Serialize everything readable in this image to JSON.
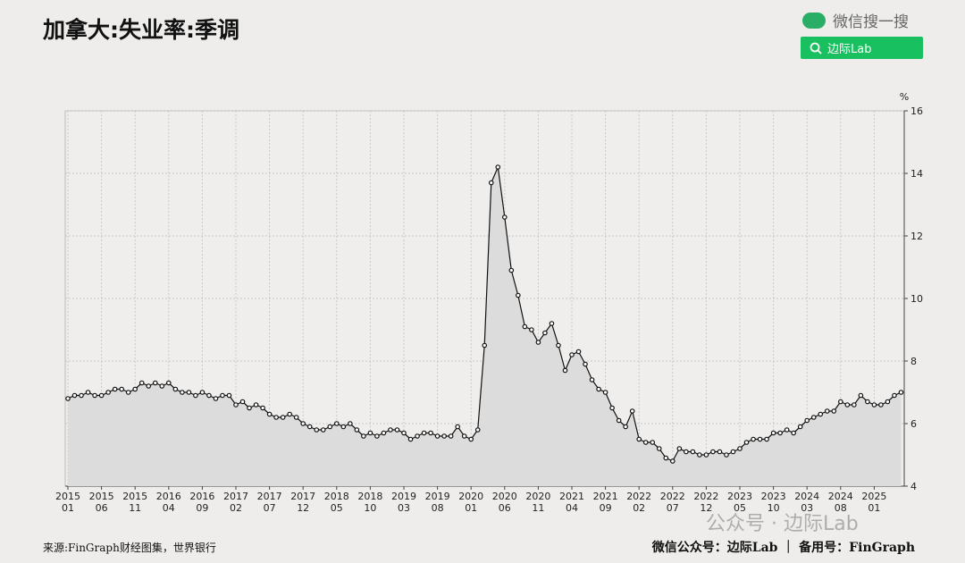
{
  "search_label": "微信搜一搜",
  "search_button": "边际Lab",
  "source": "来源:FinGraph财经图集，世界银行",
  "account": "微信公众号：边际Lab ｜ 备用号：FinGraph",
  "watermark": "公众号 · 边际Lab",
  "chart_data": {
    "type": "line",
    "title": "加拿大:失业率:季调",
    "y_label": "%",
    "color": "#111111",
    "area_color": "#dcdcdc",
    "grid": true,
    "ylim": [
      4,
      16
    ],
    "yticks": [
      4,
      6,
      8,
      10,
      12,
      14,
      16
    ],
    "categories": [
      [
        "2015",
        "01"
      ],
      null,
      null,
      null,
      null,
      [
        "2015",
        "06"
      ],
      null,
      null,
      null,
      null,
      [
        "2015",
        "11"
      ],
      null,
      null,
      null,
      null,
      [
        "2016",
        "04"
      ],
      null,
      null,
      null,
      null,
      [
        "2016",
        "09"
      ],
      null,
      null,
      null,
      null,
      [
        "2017",
        "02"
      ],
      null,
      null,
      null,
      null,
      [
        "2017",
        "07"
      ],
      null,
      null,
      null,
      null,
      [
        "2017",
        "12"
      ],
      null,
      null,
      null,
      null,
      [
        "2018",
        "05"
      ],
      null,
      null,
      null,
      null,
      [
        "2018",
        "10"
      ],
      null,
      null,
      null,
      null,
      [
        "2019",
        "03"
      ],
      null,
      null,
      null,
      null,
      [
        "2019",
        "08"
      ],
      null,
      null,
      null,
      null,
      [
        "2020",
        "01"
      ],
      null,
      null,
      null,
      null,
      [
        "2020",
        "06"
      ],
      null,
      null,
      null,
      null,
      [
        "2020",
        "11"
      ],
      null,
      null,
      null,
      null,
      [
        "2021",
        "04"
      ],
      null,
      null,
      null,
      null,
      [
        "2021",
        "09"
      ],
      null,
      null,
      null,
      null,
      [
        "2022",
        "02"
      ],
      null,
      null,
      null,
      null,
      [
        "2022",
        "07"
      ],
      null,
      null,
      null,
      null,
      [
        "2022",
        "12"
      ],
      null,
      null,
      null,
      null,
      [
        "2023",
        "05"
      ],
      null,
      null,
      null,
      null,
      [
        "2023",
        "10"
      ],
      null,
      null,
      null,
      null,
      [
        "2024",
        "03"
      ],
      null,
      null,
      null,
      null,
      [
        "2024",
        "08"
      ],
      null,
      null,
      null,
      null,
      [
        "2025",
        "01"
      ],
      null,
      null,
      null,
      null
    ],
    "values": [
      6.8,
      6.9,
      6.9,
      7.0,
      6.9,
      6.9,
      7.0,
      7.1,
      7.1,
      7.0,
      7.1,
      7.3,
      7.2,
      7.3,
      7.2,
      7.3,
      7.1,
      7.0,
      7.0,
      6.9,
      7.0,
      6.9,
      6.8,
      6.9,
      6.9,
      6.6,
      6.7,
      6.5,
      6.6,
      6.5,
      6.3,
      6.2,
      6.2,
      6.3,
      6.2,
      6.0,
      5.9,
      5.8,
      5.8,
      5.9,
      6.0,
      5.9,
      6.0,
      5.8,
      5.6,
      5.7,
      5.6,
      5.7,
      5.8,
      5.8,
      5.7,
      5.5,
      5.6,
      5.7,
      5.7,
      5.6,
      5.6,
      5.6,
      5.9,
      5.6,
      5.5,
      5.8,
      8.5,
      13.7,
      14.2,
      12.6,
      10.9,
      10.1,
      9.1,
      9.0,
      8.6,
      8.9,
      9.2,
      8.5,
      7.7,
      8.2,
      8.3,
      7.9,
      7.4,
      7.1,
      7.0,
      6.5,
      6.1,
      5.9,
      6.4,
      5.5,
      5.4,
      5.4,
      5.2,
      4.9,
      4.8,
      5.2,
      5.1,
      5.1,
      5.0,
      5.0,
      5.1,
      5.1,
      5.0,
      5.1,
      5.2,
      5.4,
      5.5,
      5.5,
      5.5,
      5.7,
      5.7,
      5.8,
      5.7,
      5.9,
      6.1,
      6.2,
      6.3,
      6.4,
      6.4,
      6.7,
      6.6,
      6.6,
      6.9,
      6.7,
      6.6,
      6.6,
      6.7,
      6.9,
      7.0
    ]
  }
}
